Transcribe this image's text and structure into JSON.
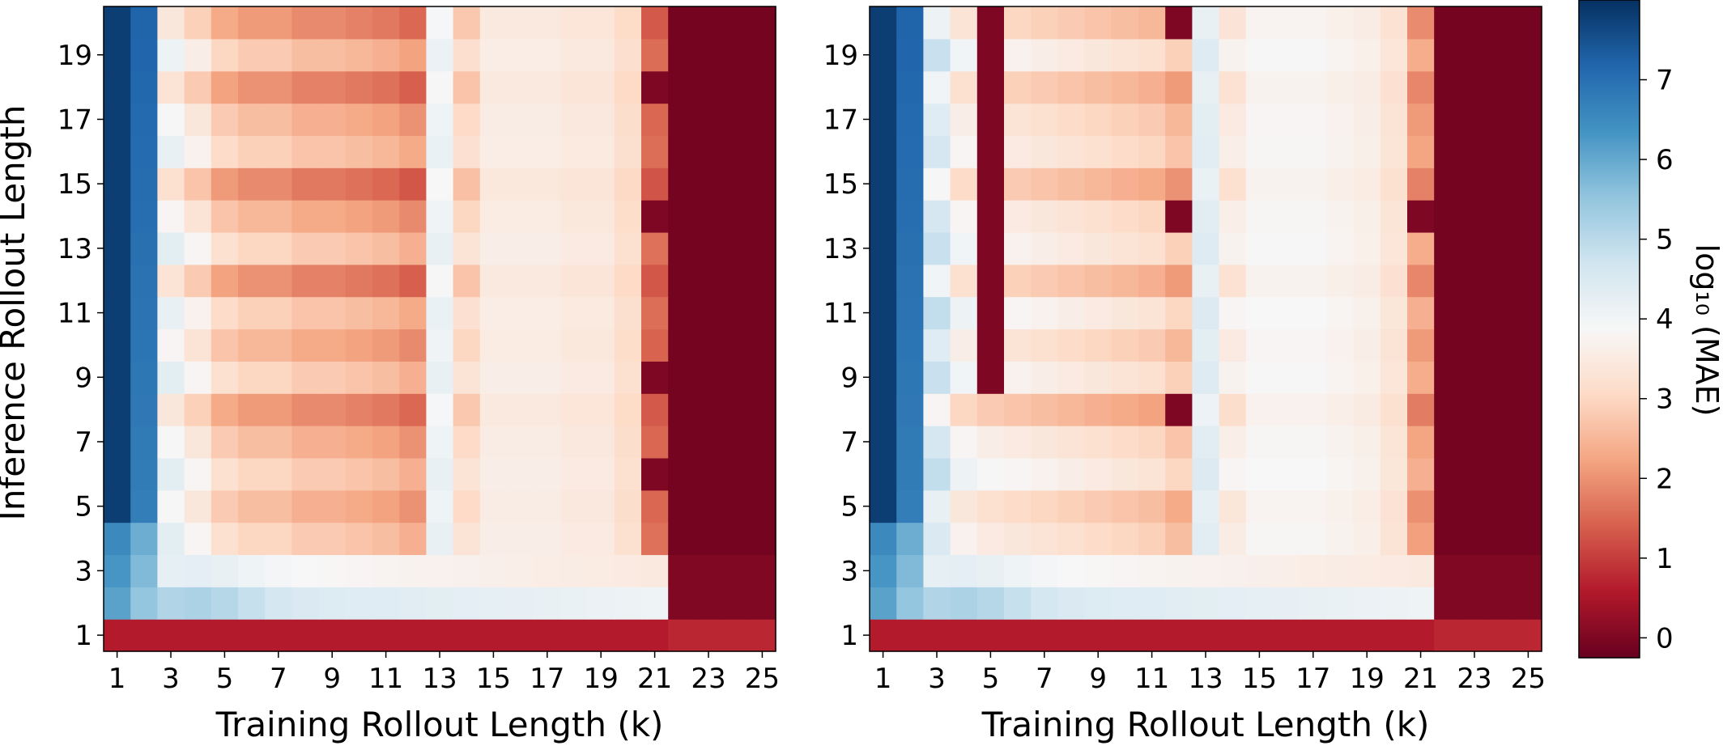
{
  "chart_data": {
    "type": "heatmap",
    "colormap": "RdBu",
    "colorbar": {
      "label": "log₁₀ (MAE)",
      "range": [
        -0.25,
        8.0
      ],
      "ticks": [
        "0",
        "1",
        "2",
        "3",
        "4",
        "5",
        "6",
        "7"
      ]
    },
    "panels": [
      {
        "xlabel": "Training Rollout Length (k)",
        "ylabel": "Inference Rollout Length",
        "x_ticks": [
          "1",
          "3",
          "5",
          "7",
          "9",
          "11",
          "13",
          "15",
          "17",
          "19",
          "21",
          "23",
          "25"
        ],
        "y_ticks": [
          "1",
          "3",
          "5",
          "7",
          "9",
          "11",
          "13",
          "15",
          "17",
          "19"
        ],
        "x_range": [
          1,
          25
        ],
        "y_range": [
          1,
          20
        ],
        "row_profile": [
          0.6,
          4.4,
          3.9,
          3.0,
          2.6,
          3.0,
          2.6,
          2.1,
          3.0,
          2.5,
          2.9,
          2.0,
          3.0,
          2.5,
          1.9,
          2.9,
          2.6,
          2.0,
          2.8,
          2.1
        ],
        "col_base": [
          7.8,
          7.2,
          4.3,
          3.8,
          3.2,
          3.0,
          3.0,
          2.8,
          2.8,
          2.7,
          2.6,
          2.4,
          4.2,
          3.3,
          3.6,
          3.6,
          3.6,
          3.5,
          3.5,
          3.2,
          1.6
        ],
        "col_d": [
          2,
          1,
          1,
          1,
          1,
          1,
          1,
          1,
          1,
          1,
          1,
          1,
          0.3,
          0.6,
          0.15,
          0.15,
          0.15,
          0.15,
          0.15,
          0.15,
          0.3
        ],
        "zero_cells": [
          [
            21,
            6
          ],
          [
            21,
            9
          ],
          [
            21,
            14
          ],
          [
            21,
            18
          ]
        ]
      },
      {
        "xlabel": "Training Rollout Length (k)",
        "ylabel": "",
        "x_ticks": [
          "1",
          "3",
          "5",
          "7",
          "9",
          "11",
          "13",
          "15",
          "17",
          "19",
          "21",
          "23",
          "25"
        ],
        "y_ticks": [
          "1",
          "3",
          "5",
          "7",
          "9",
          "11",
          "13",
          "15",
          "17",
          "19"
        ],
        "x_range": [
          1,
          25
        ],
        "y_range": [
          1,
          20
        ],
        "row_profile": [
          0.6,
          4.4,
          4.0,
          3.1,
          2.8,
          3.5,
          3.2,
          2.4,
          3.4,
          3.0,
          3.5,
          2.6,
          3.4,
          3.2,
          2.5,
          3.2,
          3.0,
          2.6,
          3.4,
          2.7
        ],
        "col_base": [
          7.8,
          7.2,
          4.4,
          3.6,
          3.4,
          3.3,
          3.2,
          3.1,
          3.0,
          2.9,
          2.8,
          2.5,
          4.3,
          3.5,
          3.8,
          3.8,
          3.8,
          3.7,
          3.6,
          3.3,
          2.1
        ],
        "col_d": [
          2,
          1,
          1,
          1,
          1,
          1,
          1,
          1,
          1,
          1,
          1,
          1,
          0.3,
          0.6,
          0.15,
          0.15,
          0.15,
          0.15,
          0.15,
          0.15,
          0.6
        ],
        "zero_cells": [
          [
            5,
            9
          ],
          [
            5,
            10
          ],
          [
            5,
            11
          ],
          [
            5,
            12
          ],
          [
            5,
            13
          ],
          [
            5,
            14
          ],
          [
            5,
            15
          ],
          [
            5,
            16
          ],
          [
            5,
            17
          ],
          [
            5,
            18
          ],
          [
            5,
            19
          ],
          [
            5,
            20
          ],
          [
            12,
            8
          ],
          [
            12,
            14
          ],
          [
            12,
            20
          ],
          [
            21,
            14
          ]
        ]
      }
    ]
  }
}
